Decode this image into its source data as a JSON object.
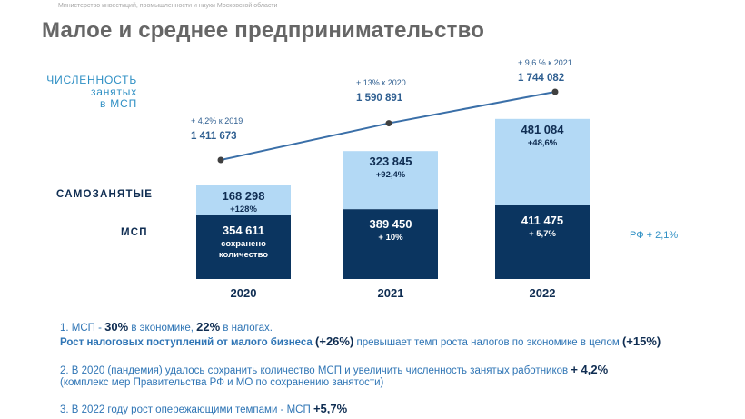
{
  "header": {
    "ministry": "Министерство инвестиций, промышленности и науки Московской области",
    "title": "Малое и среднее предпринимательство"
  },
  "labels": {
    "employment": [
      "ЧИСЛЕННОСТЬ",
      "занятых",
      "в МСП"
    ],
    "self_employed": "САМОЗАНЯТЫЕ",
    "msp": "МСП",
    "rf_note": "РФ + 2,1%"
  },
  "colors": {
    "msp_bar": "#0b3560",
    "self_employed_bar": "#b3d9f5",
    "line": "#3a6fa8",
    "line_text": "#2f5f91",
    "dark_text": "#0f2d52"
  },
  "chart_data": {
    "type": "bar",
    "categories": [
      "2020",
      "2021",
      "2022"
    ],
    "series": [
      {
        "name": "МСП",
        "values": [
          354611,
          389450,
          411475
        ],
        "labels": [
          "354 611",
          "389 450",
          "411 475"
        ],
        "sublabels": [
          [
            "сохранено",
            "количество"
          ],
          [
            "+ 10%"
          ],
          [
            "+ 5,7%"
          ]
        ]
      },
      {
        "name": "САМОЗАНЯТЫЕ",
        "values": [
          168298,
          323845,
          481084
        ],
        "labels": [
          "168 298",
          "323 845",
          "481 084"
        ],
        "sublabels": [
          [
            "+128%"
          ],
          [
            "+92,4%"
          ],
          [
            "+48,6%"
          ]
        ]
      }
    ],
    "line": {
      "name": "ЧИСЛЕННОСТЬ занятых в МСП",
      "values": [
        1411673,
        1590891,
        1744082
      ],
      "labels": [
        "1 411 673",
        "1 590 891",
        "1  744 082"
      ],
      "change_labels": [
        "+ 4,2% к 2019",
        "+ 13% к 2020",
        "+ 9,6 % к 2021"
      ]
    }
  },
  "notes": {
    "n1_prefix": "1. МСП - ",
    "n1_v1": "30%",
    "n1_mid": " в экономике, ",
    "n1_v2": "22%",
    "n1_suffix": " в налогах.",
    "n1b_bold": "Рост налоговых поступлений от малого бизнеса",
    "n1b_v1": "(+26%)",
    "n1b_mid": "  превышает темп роста налогов по экономике  в целом ",
    "n1b_v2": "(+15%)",
    "n2": "2. В 2020 (пандемия) удалось сохранить количество МСП и увеличить численность занятых работников ",
    "n2_v": " + 4,2%",
    "n2b": "(комплекс  мер Правительства РФ  и МО по сохранению занятости)",
    "n3": "3. В 2022 году рост  опережающими темпами  - МСП ",
    "n3_v": " +5,7%"
  }
}
